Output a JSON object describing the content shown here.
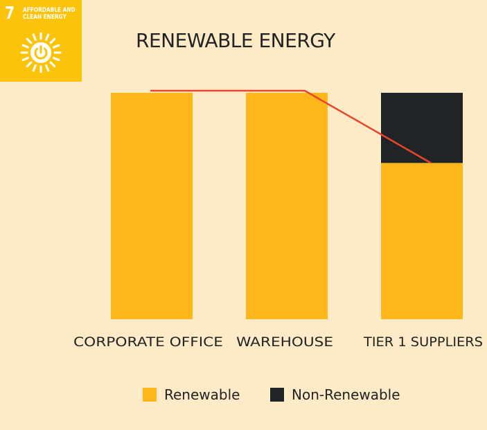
{
  "badge": {
    "number": "7",
    "line1": "AFFORDABLE AND",
    "line2": "CLEAN ENERGY",
    "icon": "sun-power-icon",
    "color": "#fcc30b"
  },
  "colors": {
    "background": "#fdebc8",
    "renewable": "#fdb71a",
    "non_renewable": "#212426",
    "trend_line": "#e8452c",
    "text": "#222222"
  },
  "chart_data": {
    "type": "bar",
    "stacked": true,
    "title": "RENEWABLE ENERGY",
    "xlabel": "",
    "ylabel": "",
    "ylim": [
      0,
      100
    ],
    "grid": false,
    "legend_position": "bottom",
    "categories": [
      "CORPORATE OFFICE",
      "WAREHOUSE",
      "TIER 1 SUPPLIERS"
    ],
    "series": [
      {
        "name": "Renewable",
        "values": [
          100,
          100,
          69
        ]
      },
      {
        "name": "Non-Renewable",
        "values": [
          0,
          0,
          31
        ]
      }
    ],
    "trend_line_values": [
      100,
      100,
      69
    ]
  }
}
